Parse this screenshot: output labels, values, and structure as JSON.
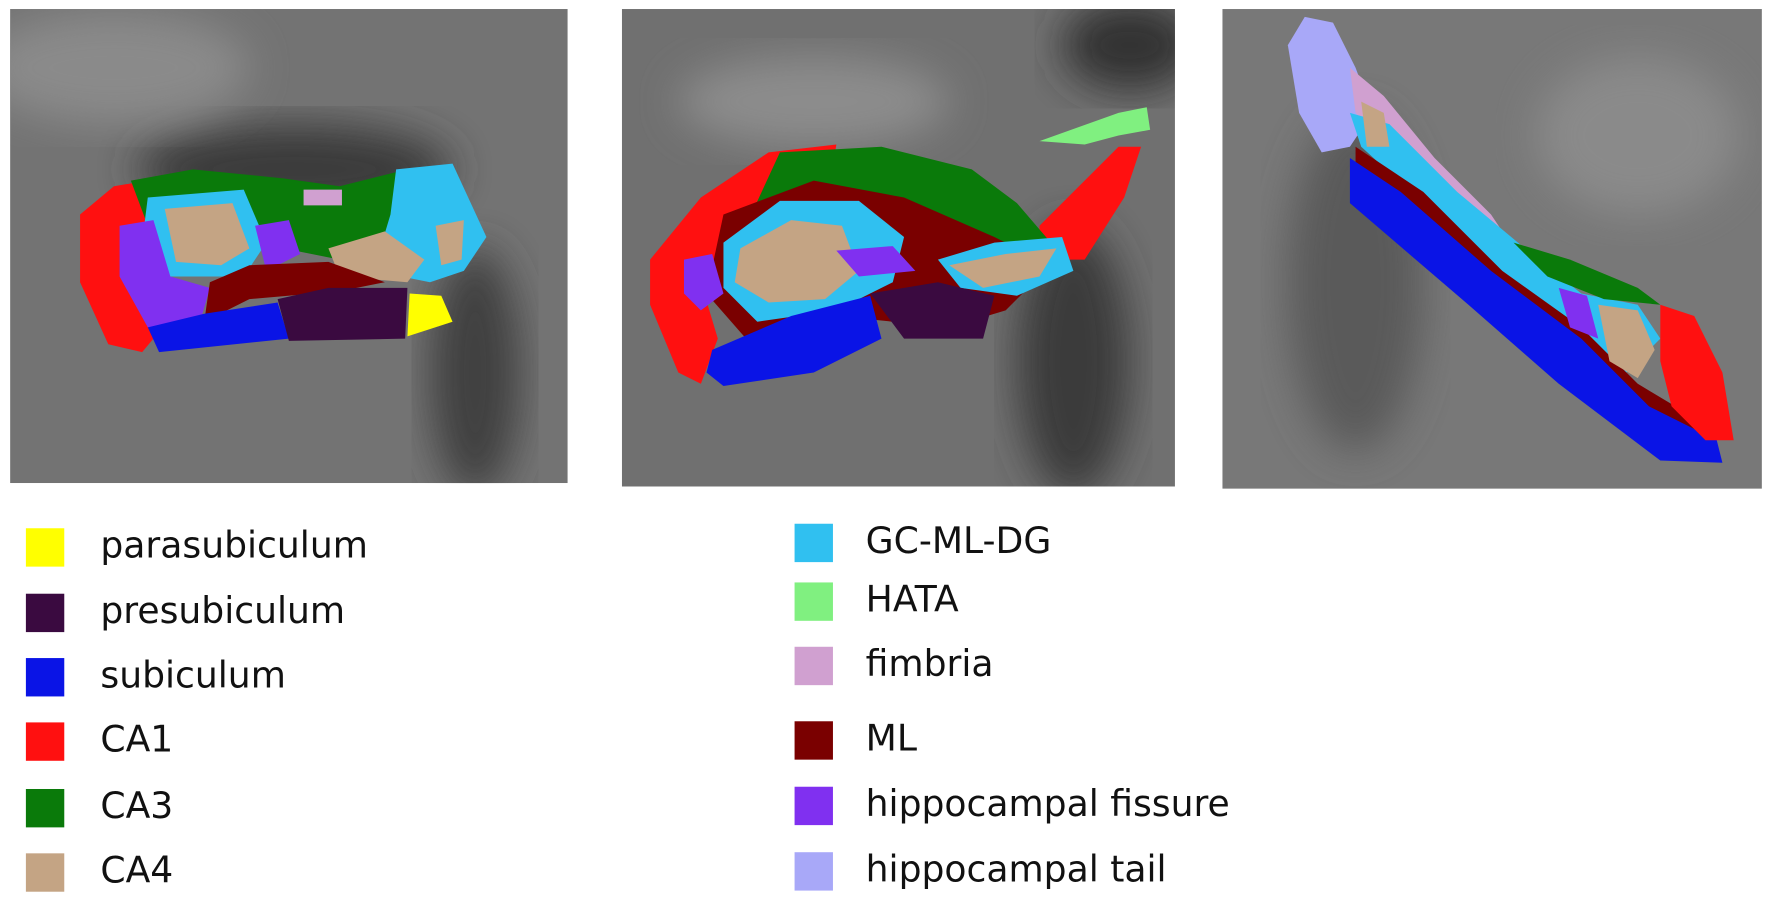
{
  "legend": [
    {
      "label": "parasubiculum",
      "color": "#ffff00"
    },
    {
      "label": "presubiculum",
      "color": "#3a0a40"
    },
    {
      "label": "subiculum",
      "color": "#0a14e6"
    },
    {
      "label": "CA1",
      "color": "#ff1010"
    },
    {
      "label": "CA3",
      "color": "#0a7a0a"
    },
    {
      "label": "CA4",
      "color": "#c4a484"
    },
    {
      "label": "GC-ML-DG",
      "color": "#30c0f0"
    },
    {
      "label": "HATA",
      "color": "#80f080"
    },
    {
      "label": "fimbria",
      "color": "#d0a0d0"
    },
    {
      "label": "ML",
      "color": "#7a0000"
    },
    {
      "label": "hippocampal fissure",
      "color": "#8030f0"
    },
    {
      "label": "hippocampal tail",
      "color": "#a8a8f8"
    }
  ]
}
